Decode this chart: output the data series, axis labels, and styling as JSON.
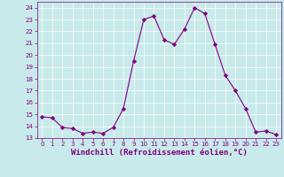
{
  "x": [
    0,
    1,
    2,
    3,
    4,
    5,
    6,
    7,
    8,
    9,
    10,
    11,
    12,
    13,
    14,
    15,
    16,
    17,
    18,
    19,
    20,
    21,
    22,
    23
  ],
  "y": [
    14.8,
    14.7,
    13.9,
    13.8,
    13.4,
    13.5,
    13.4,
    13.9,
    15.5,
    19.5,
    23.0,
    23.3,
    21.3,
    20.9,
    22.2,
    24.0,
    23.5,
    20.9,
    18.3,
    17.0,
    15.5,
    13.5,
    13.6,
    13.3
  ],
  "line_color": "#800080",
  "marker": "D",
  "marker_size": 2.2,
  "bg_color": "#c8eaea",
  "grid_color": "#b0d8d8",
  "xlabel": "Windchill (Refroidissement éolien,°C)",
  "xlabel_color": "#800080",
  "ylim": [
    13,
    24.5
  ],
  "xlim": [
    -0.5,
    23.5
  ],
  "yticks": [
    13,
    14,
    15,
    16,
    17,
    18,
    19,
    20,
    21,
    22,
    23,
    24
  ],
  "xticks": [
    0,
    1,
    2,
    3,
    4,
    5,
    6,
    7,
    8,
    9,
    10,
    11,
    12,
    13,
    14,
    15,
    16,
    17,
    18,
    19,
    20,
    21,
    22,
    23
  ],
  "tick_color": "#800080",
  "tick_fontsize": 5.0,
  "xlabel_fontsize": 6.5,
  "spine_color": "#800080",
  "linewidth": 0.8
}
